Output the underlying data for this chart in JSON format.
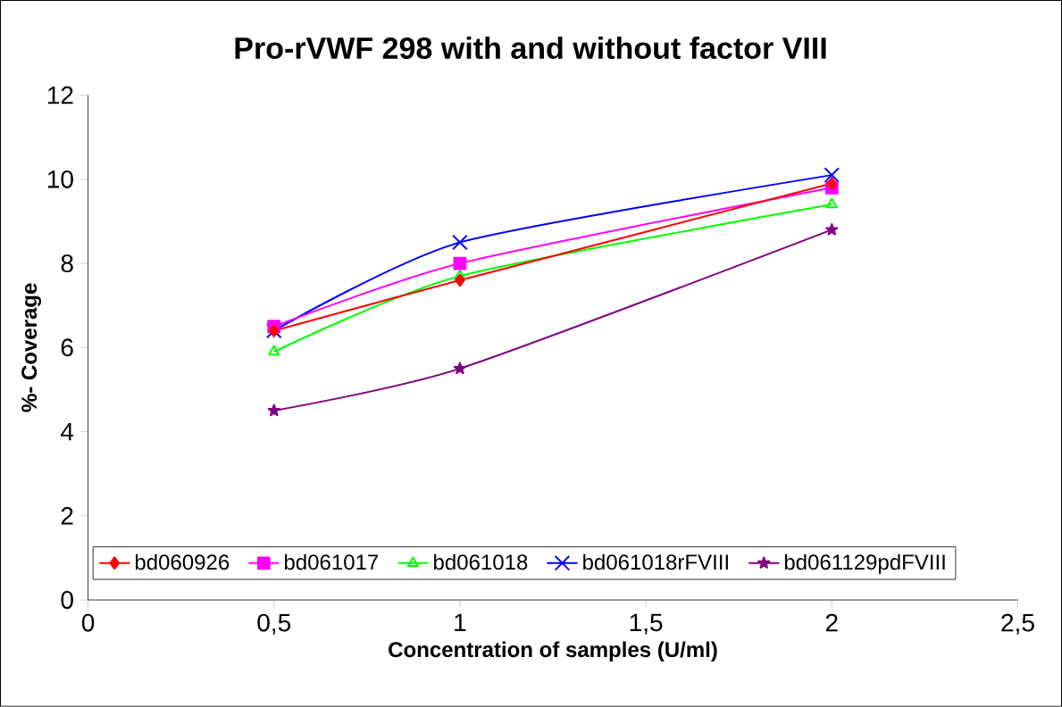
{
  "chart_data": {
    "type": "line",
    "title": "Pro-rVWF 298 with and without factor VIII",
    "xlabel": "Concentration of samples (U/ml)",
    "ylabel": "%- Coverage",
    "x": [
      0.5,
      1,
      2
    ],
    "series": [
      {
        "name": "bd060926",
        "color": "#ff0000",
        "marker": "diamond",
        "values": [
          6.4,
          7.6,
          9.9
        ]
      },
      {
        "name": "bd061017",
        "color": "#ff00ff",
        "marker": "square",
        "values": [
          6.5,
          8.0,
          9.8
        ]
      },
      {
        "name": "bd061018",
        "color": "#00ff00",
        "marker": "triangle",
        "values": [
          5.9,
          7.7,
          9.4
        ]
      },
      {
        "name": "bd061018rFVIII",
        "color": "#0000ff",
        "marker": "cross",
        "values": [
          6.4,
          8.5,
          10.1
        ]
      },
      {
        "name": "bd061129pdFVIII",
        "color": "#800080",
        "marker": "star",
        "values": [
          4.5,
          5.5,
          8.8
        ]
      }
    ],
    "xlim": [
      0,
      2.5
    ],
    "ylim": [
      0,
      12
    ],
    "xticks": [
      0,
      {
        "value": 0.5,
        "label": "0,5"
      },
      1,
      {
        "value": 1.5,
        "label": "1,5"
      },
      2,
      {
        "value": 2.5,
        "label": "2,5"
      }
    ],
    "yticks": [
      0,
      2,
      4,
      6,
      8,
      10,
      12
    ],
    "grid": false,
    "legend": "bottom"
  }
}
